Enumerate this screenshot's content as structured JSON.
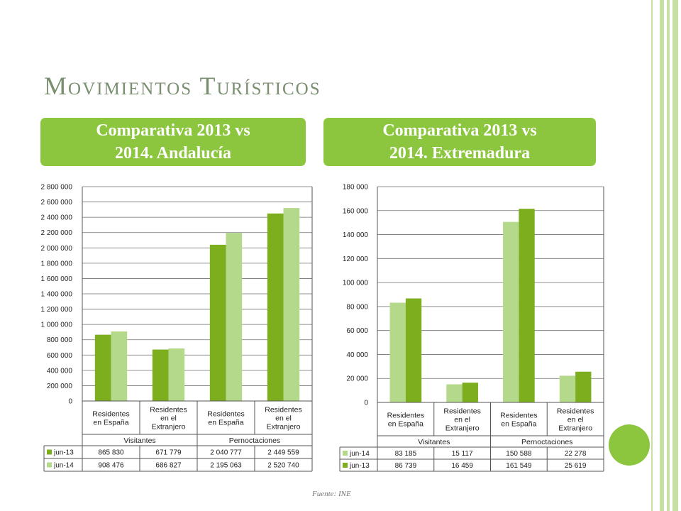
{
  "slide": {
    "title": "Movimientos Turísticos",
    "source": "Fuente: INE"
  },
  "colors": {
    "accent": "#8cc63f",
    "dark_green": "#7cae1e",
    "light_green": "#b5d98a"
  },
  "left_header": {
    "line1": "Comparativa 2013 vs",
    "line2": "2014. Andalucía"
  },
  "right_header": {
    "line1": "Comparativa 2013 vs",
    "line2": "2014. Extremadura"
  },
  "chart_data": [
    {
      "type": "bar",
      "title": "",
      "ylim": [
        0,
        2800000
      ],
      "yticks": [
        0,
        200000,
        400000,
        600000,
        800000,
        1000000,
        1200000,
        1400000,
        1600000,
        1800000,
        2000000,
        2200000,
        2400000,
        2600000,
        2800000
      ],
      "ytick_labels": [
        "0",
        "200 000",
        "400 000",
        "600 000",
        "800 000",
        "1 000 000",
        "1 200 000",
        "1 400 000",
        "1 600 000",
        "1 800 000",
        "2 000 000",
        "2 200 000",
        "2 400 000",
        "2 600 000",
        "2 800 000"
      ],
      "categories": [
        [
          "Residentes",
          "en España"
        ],
        [
          "Residentes",
          "en el",
          "Extranjero"
        ],
        [
          "Residentes",
          "en España"
        ],
        [
          "Residentes",
          "en el",
          "Extranjero"
        ]
      ],
      "groups": [
        "Visitantes",
        "Pernoctaciones"
      ],
      "series": [
        {
          "name": "jun-13",
          "color": "#7cae1e",
          "values": [
            865830,
            671779,
            2040777,
            2449559
          ],
          "labels": [
            "865 830",
            "671 779",
            "2 040 777",
            "2 449 559"
          ]
        },
        {
          "name": "jun-14",
          "color": "#b5d98a",
          "values": [
            908476,
            686827,
            2195063,
            2520740
          ],
          "labels": [
            "908 476",
            "686 827",
            "2 195 063",
            "2 520 740"
          ]
        }
      ],
      "grid": true,
      "legend": "data table below"
    },
    {
      "type": "bar",
      "title": "",
      "ylim": [
        0,
        180000
      ],
      "yticks": [
        0,
        20000,
        40000,
        60000,
        80000,
        100000,
        120000,
        140000,
        160000,
        180000
      ],
      "ytick_labels": [
        "0",
        "20 000",
        "40 000",
        "60 000",
        "80 000",
        "100 000",
        "120 000",
        "140 000",
        "160 000",
        "180 000"
      ],
      "categories": [
        [
          "Residentes",
          "en España"
        ],
        [
          "Residentes",
          "en el",
          "Extranjero"
        ],
        [
          "Residentes",
          "en España"
        ],
        [
          "Residentes",
          "en el",
          "Extranjero"
        ]
      ],
      "groups": [
        "Visitantes",
        "Pernoctaciones"
      ],
      "series": [
        {
          "name": "jun-14",
          "color": "#b5d98a",
          "values": [
            83185,
            15117,
            150588,
            22278
          ],
          "labels": [
            "83 185",
            "15 117",
            "150 588",
            "22 278"
          ]
        },
        {
          "name": "jun-13",
          "color": "#7cae1e",
          "values": [
            86739,
            16459,
            161549,
            25619
          ],
          "labels": [
            "86 739",
            "16 459",
            "161 549",
            "25 619"
          ]
        }
      ],
      "grid": true,
      "legend": "data table below"
    }
  ]
}
